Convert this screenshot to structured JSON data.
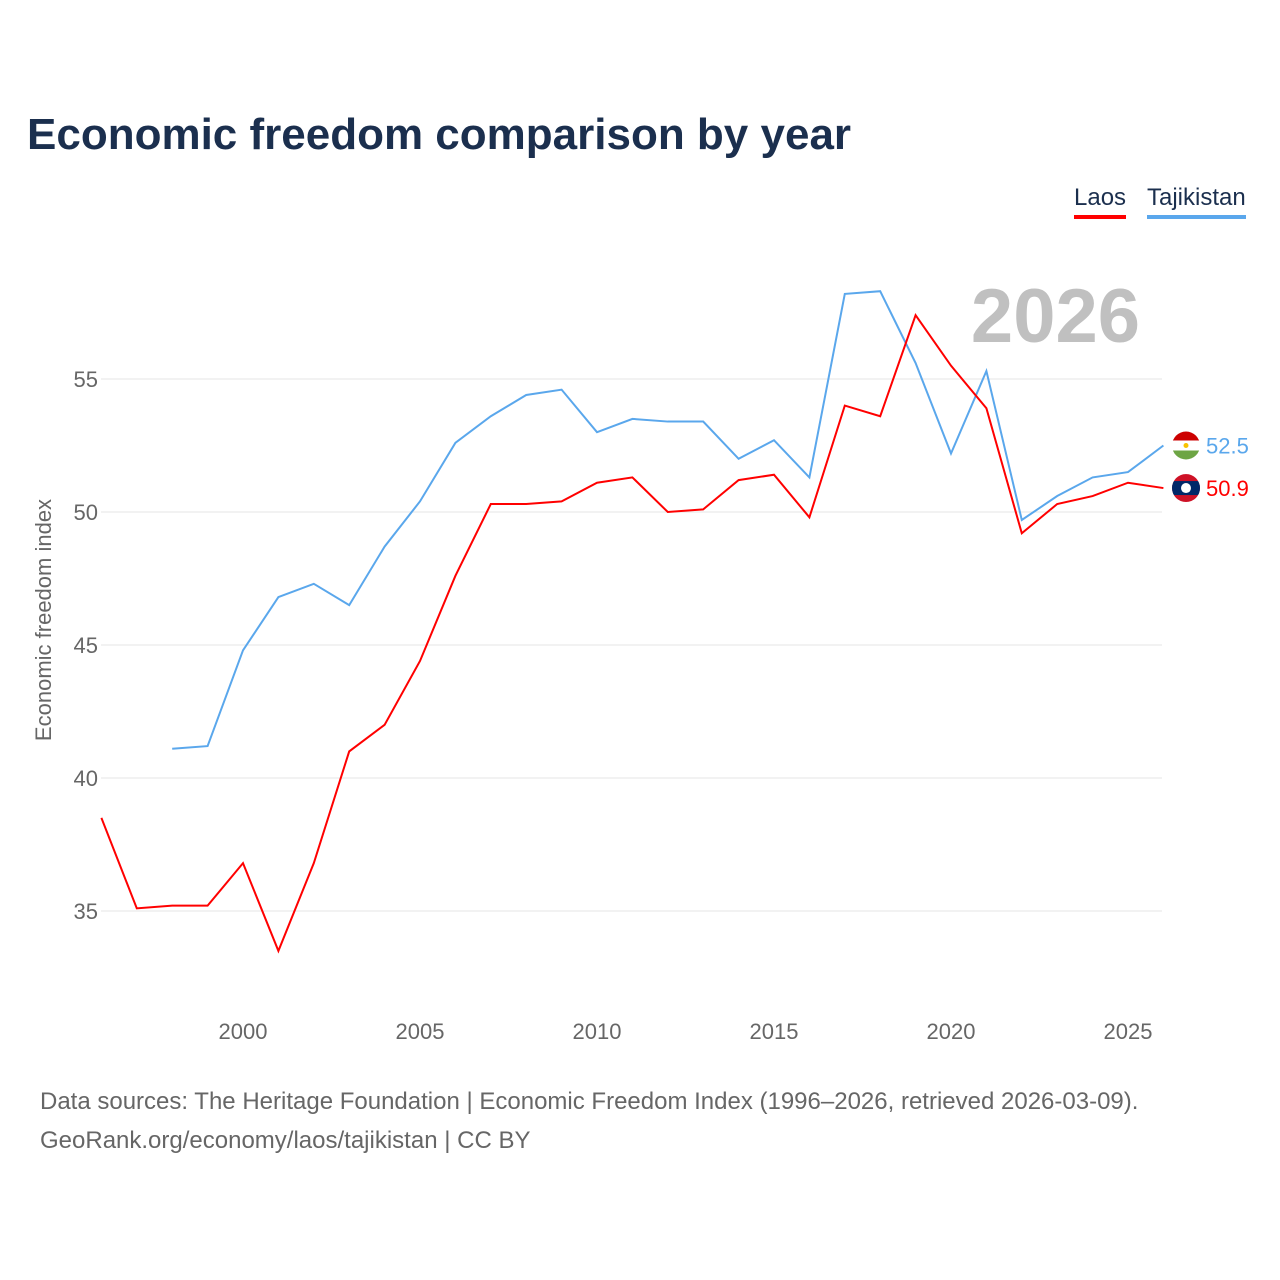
{
  "chart_data": {
    "type": "line",
    "title": "Economic freedom comparison by year",
    "ylabel": "Economic freedom index",
    "xlabel": "",
    "watermark_year": "2026",
    "xlim": [
      1996,
      2026
    ],
    "ylim": [
      31,
      60
    ],
    "yticks": [
      35,
      40,
      45,
      50,
      55
    ],
    "xticks": [
      2000,
      2005,
      2010,
      2015,
      2020,
      2025
    ],
    "grid": true,
    "legend_position": "top-right",
    "series": [
      {
        "name": "Laos",
        "color": "#ff0000",
        "end_label": "50.9",
        "flag": "laos-flag",
        "x": [
          1996,
          1997,
          1998,
          1999,
          2000,
          2001,
          2002,
          2003,
          2004,
          2005,
          2006,
          2007,
          2008,
          2009,
          2010,
          2011,
          2012,
          2013,
          2014,
          2015,
          2016,
          2017,
          2018,
          2019,
          2020,
          2021,
          2022,
          2023,
          2024,
          2025,
          2026
        ],
        "values": [
          38.5,
          35.1,
          35.2,
          35.2,
          36.8,
          33.5,
          36.8,
          41.0,
          42.0,
          44.4,
          47.6,
          50.3,
          50.3,
          50.4,
          51.1,
          51.3,
          50.0,
          50.1,
          51.2,
          51.4,
          49.8,
          54.0,
          53.6,
          57.4,
          55.5,
          53.9,
          49.2,
          50.3,
          50.6,
          51.1,
          50.9
        ]
      },
      {
        "name": "Tajikistan",
        "color": "#5aa7ec",
        "end_label": "52.5",
        "flag": "tajikistan-flag",
        "x": [
          1998,
          1999,
          2000,
          2001,
          2002,
          2003,
          2004,
          2005,
          2006,
          2007,
          2008,
          2009,
          2010,
          2011,
          2012,
          2013,
          2014,
          2015,
          2016,
          2017,
          2018,
          2019,
          2020,
          2021,
          2022,
          2023,
          2024,
          2025,
          2026
        ],
        "values": [
          41.1,
          41.2,
          44.8,
          46.8,
          47.3,
          46.5,
          48.7,
          50.4,
          52.6,
          53.6,
          54.4,
          54.6,
          53.0,
          53.5,
          53.4,
          53.4,
          52.0,
          52.7,
          51.3,
          58.2,
          58.3,
          55.6,
          52.2,
          55.3,
          49.7,
          50.6,
          51.3,
          51.5,
          52.5
        ]
      }
    ]
  },
  "footer": {
    "sources": "Data sources: The Heritage Foundation | Economic Freedom Index (1996–2026, retrieved 2026-03-09).",
    "credit": "GeoRank.org/economy/laos/tajikistan | CC BY"
  }
}
